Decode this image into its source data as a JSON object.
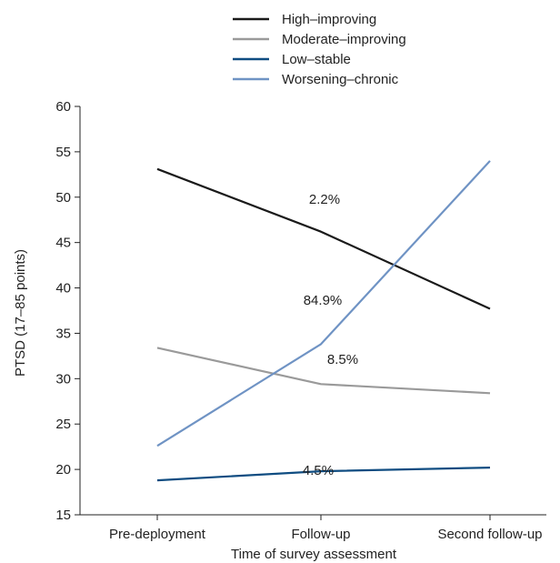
{
  "chart_data": {
    "type": "line",
    "categories": [
      "Pre-deployment",
      "Follow-up",
      "Second follow-up"
    ],
    "xlabel": "Time of survey assessment",
    "ylabel": "PTSD (17–85 points)",
    "ylim": [
      15,
      60
    ],
    "yticks": [
      15,
      20,
      25,
      30,
      35,
      40,
      45,
      50,
      55,
      60
    ],
    "grid": false,
    "legend_position": "top",
    "series": [
      {
        "name": "High–improving",
        "color": "#1a1a1a",
        "values": [
          53.1,
          46.2,
          37.7
        ],
        "label": "2.2%"
      },
      {
        "name": "Moderate–improving",
        "color": "#9a9a9a",
        "values": [
          33.4,
          29.4,
          28.4
        ],
        "label": "8.5%"
      },
      {
        "name": "Low–stable",
        "color": "#0f4c81",
        "values": [
          18.8,
          19.8,
          20.2
        ],
        "label": "84.9%"
      },
      {
        "name": "Worsening–chronic",
        "color": "#6f93c4",
        "values": [
          22.6,
          33.8,
          54.0
        ],
        "label": "4.5%"
      }
    ]
  }
}
